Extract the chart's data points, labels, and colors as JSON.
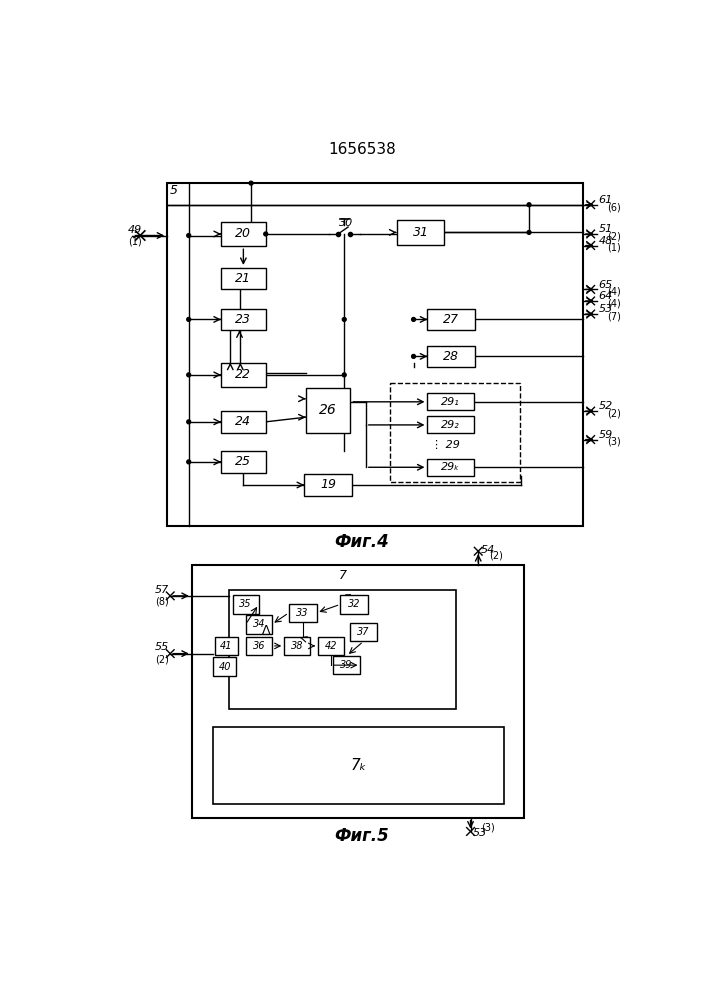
{
  "title": "1656538",
  "fig4_label": "Фиг.4",
  "fig5_label": "Фиг.5",
  "bg_color": "#ffffff",
  "line_color": "#000000"
}
